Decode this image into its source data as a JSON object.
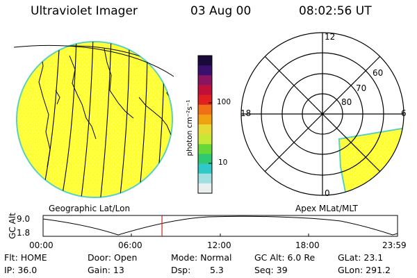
{
  "header": {
    "instrument": "Ultraviolet Imager",
    "date": "03 Aug 00",
    "time": "08:02:56 UT"
  },
  "panels": {
    "geo_label": "Geographic Lat/Lon",
    "apex_label": "Apex MLat/MLT"
  },
  "colorbar": {
    "unit_label": "photon cm⁻²s⁻¹",
    "ticks": [
      "100",
      "10"
    ],
    "colors": [
      "#1a0a3a",
      "#3a0f6e",
      "#8a1460",
      "#c0103a",
      "#e02020",
      "#f07018",
      "#f0a010",
      "#e8d838",
      "#c8e838",
      "#68d838",
      "#30c870",
      "#30c8c8",
      "#a0e0e0",
      "#e8f0f0"
    ]
  },
  "polar": {
    "mlt_labels": {
      "top": "12",
      "left": "18",
      "right": "6",
      "bottom": "0"
    },
    "lat_labels": [
      "60",
      "70",
      "80"
    ],
    "fill_color": "#ffff33",
    "edge_color": "#5ad0c0"
  },
  "altplot": {
    "ylabel": "GC Alt",
    "ymax_label": "9.0",
    "ymin_label": "1.8",
    "x_ticks": [
      "00:00",
      "06:00",
      "12:00",
      "18:00",
      "23:59"
    ],
    "marker_time_hours": 8.05,
    "marker_color": "#cc2020"
  },
  "status": {
    "flt": "Flt: HOME",
    "door": "Door: Open",
    "mode": "Mode: Normal",
    "gcalt": "GC Alt: 6.0 Re",
    "glat": "GLat:  23.1",
    "ip": "IP: 36.0",
    "gain": "Gain: 13",
    "dsp_label": "Dsp:",
    "dsp_value": "5.3",
    "seq": "Seq: 39",
    "glon": "GLon: 291.2"
  }
}
